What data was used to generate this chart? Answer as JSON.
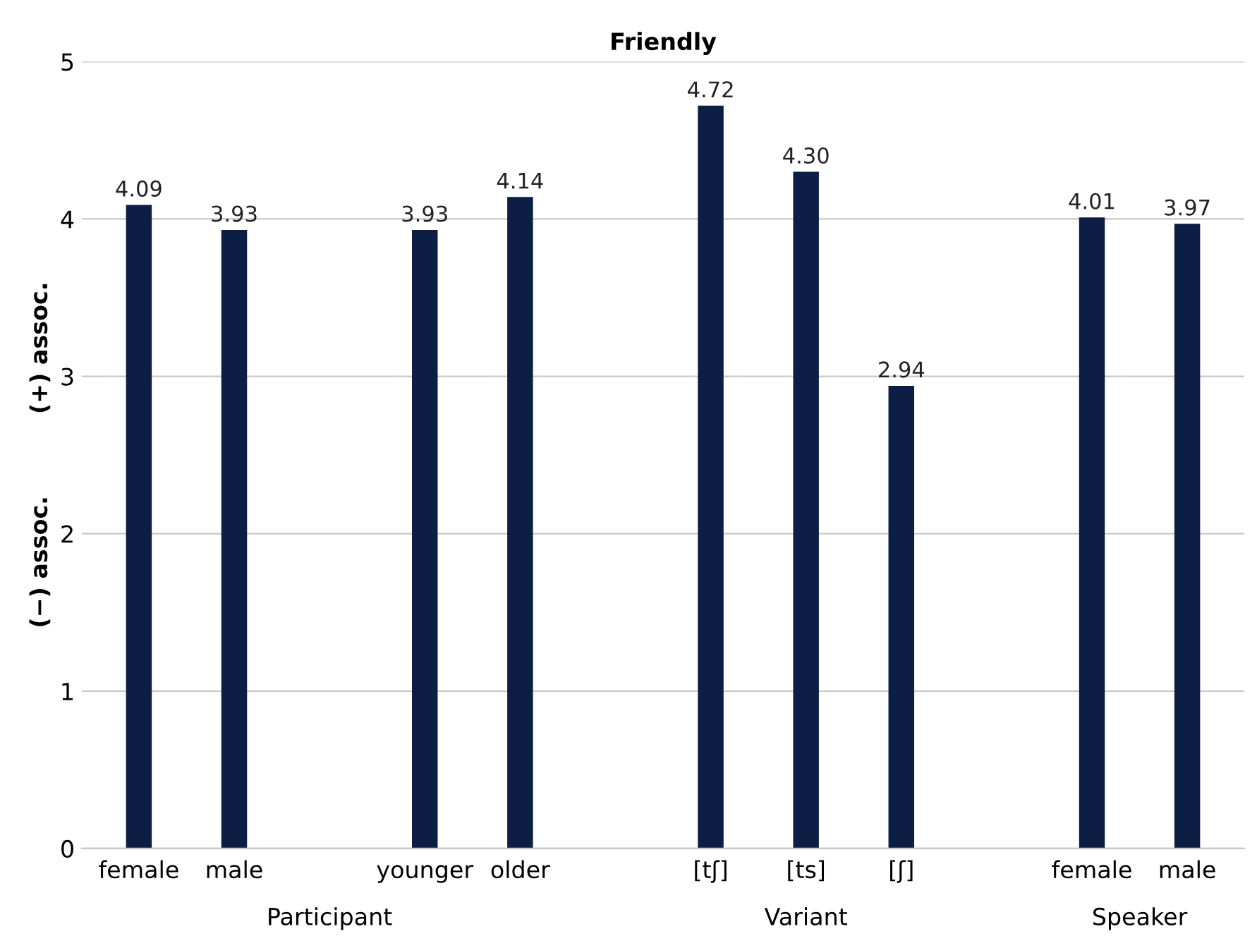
{
  "chart_data": {
    "type": "bar",
    "title": "Friendly",
    "ylabel": "(−) assoc.          (+) assoc.",
    "categories": [
      "female",
      "male",
      null,
      "younger",
      "older",
      null,
      "[tʃ]",
      "[ts]",
      "[ʃ]",
      null,
      "female",
      "male"
    ],
    "values": [
      4.09,
      3.93,
      null,
      3.93,
      4.14,
      null,
      4.72,
      4.3,
      2.94,
      null,
      4.01,
      3.97
    ],
    "value_labels": [
      "4.09",
      "3.93",
      null,
      "3.93",
      "4.14",
      null,
      "4.72",
      "4.30",
      "2.94",
      null,
      "4.01",
      "3.97"
    ],
    "color": "#0c1e44",
    "ylim": [
      0,
      5
    ],
    "yticks": [
      0,
      1,
      2,
      3,
      4,
      5
    ],
    "grid": "y",
    "annotations": [
      "Participant",
      "Variant",
      "Speaker"
    ]
  }
}
